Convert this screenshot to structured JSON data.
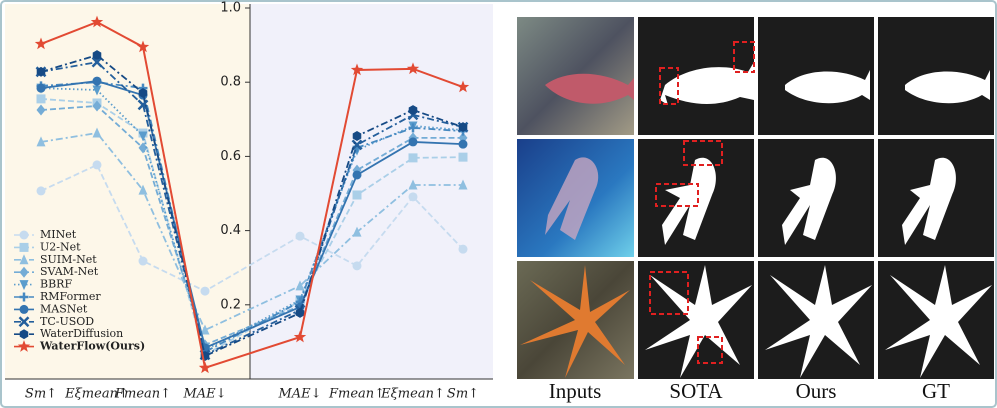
{
  "chart_data": {
    "type": "line",
    "categories": [
      "Sm↑",
      "Eξmean↑",
      "Fmean↑",
      "MAE↓",
      "MAE↓",
      "Fmean↑",
      "Eξmean↑",
      "Sm↑"
    ],
    "ylim": [
      0,
      1
    ],
    "yticks": [
      0.2,
      0.4,
      0.6,
      0.8,
      {
        "value": 1,
        "label": "1.0"
      }
    ],
    "legend": "lower left",
    "series": [
      {
        "name": "MINet",
        "color": "#c6dbef",
        "marker": "circle",
        "linestyle": "--",
        "values": [
          0.507,
          0.577,
          0.318,
          0.237,
          0.385,
          0.305,
          0.491,
          0.35
        ]
      },
      {
        "name": "U2-Net",
        "color": "#aacfe8",
        "marker": "square",
        "linestyle": "--",
        "values": [
          0.755,
          0.744,
          0.663,
          0.065,
          0.21,
          0.496,
          0.596,
          0.598
        ]
      },
      {
        "name": "SUIM-Net",
        "color": "#8fbfe0",
        "marker": "triangle",
        "linestyle": "-.",
        "values": [
          0.639,
          0.663,
          0.509,
          0.132,
          0.251,
          0.396,
          0.523,
          0.523
        ]
      },
      {
        "name": "SVAM-Net",
        "color": "#74acd6",
        "marker": "diamond",
        "linestyle": "--",
        "values": [
          0.725,
          0.736,
          0.623,
          0.092,
          0.197,
          0.563,
          0.65,
          0.65
        ]
      },
      {
        "name": "BBRF",
        "color": "#5a9ccc",
        "marker": "down",
        "linestyle": ":",
        "values": [
          0.784,
          0.779,
          0.655,
          0.078,
          0.213,
          0.617,
          0.682,
          0.671
        ]
      },
      {
        "name": "RMFormer",
        "color": "#4689c1",
        "marker": "plus",
        "linestyle": "-.",
        "values": [
          0.79,
          0.8,
          0.784,
          0.073,
          0.208,
          0.623,
          0.677,
          0.668
        ]
      },
      {
        "name": "MASNet",
        "color": "#3474b0",
        "marker": "circle",
        "linestyle": "-",
        "values": [
          0.784,
          0.803,
          0.765,
          0.084,
          0.194,
          0.55,
          0.639,
          0.633
        ]
      },
      {
        "name": "TC-USOD",
        "color": "#245f9c",
        "marker": "x",
        "linestyle": "-.",
        "values": [
          0.828,
          0.854,
          0.739,
          0.065,
          0.186,
          0.631,
          0.712,
          0.679
        ]
      },
      {
        "name": "WaterDiffusion",
        "color": "#164a85",
        "marker": "hexagon",
        "linestyle": "-.",
        "values": [
          0.828,
          0.873,
          0.771,
          0.062,
          0.178,
          0.655,
          0.725,
          0.679
        ]
      },
      {
        "name": "WaterFlow(Ours)",
        "color": "#e24a33",
        "marker": "star",
        "linestyle": "-",
        "values": [
          0.903,
          0.962,
          0.895,
          0.03,
          0.113,
          0.833,
          0.836,
          0.787
        ]
      }
    ]
  },
  "image_grid": {
    "column_labels": [
      "Inputs",
      "SOTA",
      "Ours",
      "GT"
    ]
  }
}
